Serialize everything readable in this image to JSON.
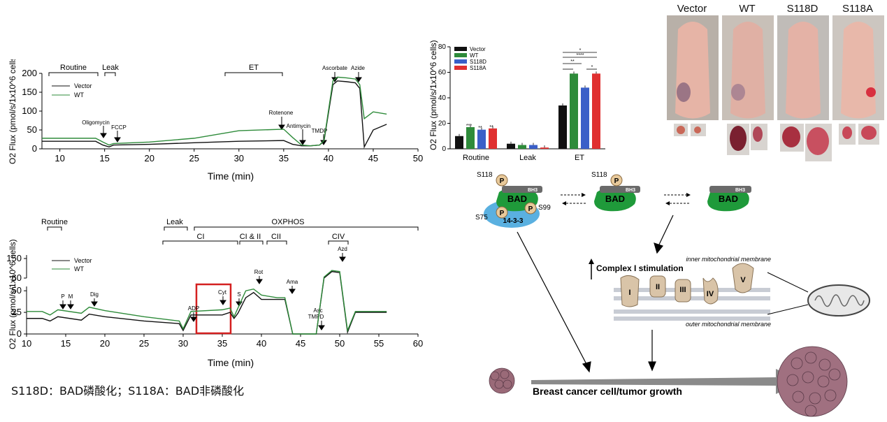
{
  "colors": {
    "vector": "#111111",
    "wt": "#2e8b3a",
    "s118d": "#3a5fc8",
    "s118a": "#e03030",
    "highlight": "#d42020",
    "bad": "#1f9a3a",
    "protein1433": "#5ab0e0",
    "phospho": "#e8c99a",
    "complex": "#d9c4a8"
  },
  "panel_a": {
    "ylabel": "O2 Flux (pmol/s/1x10^6 cells)",
    "xlabel": "Time (min)",
    "legend": [
      "Vector",
      "WT"
    ],
    "phases": [
      "Routine",
      "Leak",
      "ET"
    ],
    "injections": [
      "Oligomycin",
      "FCCP",
      "Rotenone",
      "Antimycin",
      "TMDP",
      "Ascorbate",
      "Azide"
    ],
    "chart_data": {
      "type": "line",
      "xlim": [
        8,
        50
      ],
      "ylim": [
        0,
        200
      ],
      "x_ticks": [
        "10",
        "15",
        "20",
        "25",
        "30",
        "35",
        "40",
        "45",
        "50"
      ],
      "y_ticks": [
        "0",
        "50",
        "100",
        "150",
        "200"
      ],
      "series": [
        {
          "name": "Vector",
          "x": [
            8,
            14,
            14.8,
            15.5,
            16,
            20,
            25,
            30,
            35,
            36,
            37,
            38,
            39,
            39.5,
            40.5,
            41,
            42,
            43,
            43.5,
            44,
            45,
            46.5
          ],
          "y": [
            20,
            20,
            10,
            5,
            10,
            12,
            16,
            20,
            22,
            12,
            8,
            8,
            10,
            20,
            170,
            180,
            178,
            175,
            160,
            5,
            50,
            65
          ]
        },
        {
          "name": "WT",
          "x": [
            8,
            14,
            14.8,
            15.5,
            16,
            20,
            25,
            30,
            35,
            36,
            37,
            38,
            39,
            39.5,
            40.5,
            41,
            42,
            43,
            43.5,
            44,
            45,
            46.5
          ],
          "y": [
            28,
            28,
            18,
            10,
            14,
            18,
            28,
            48,
            52,
            30,
            10,
            8,
            10,
            22,
            180,
            190,
            188,
            185,
            170,
            80,
            98,
            92
          ]
        }
      ]
    }
  },
  "panel_b": {
    "ylabel": "O2 Flux (pmol/s/1x10^6 cells)",
    "xlabel": "Time (min)",
    "legend": [
      "Vector",
      "WT"
    ],
    "phases": [
      "Routine",
      "Leak",
      "OXPHOS",
      "CI",
      "CI & II",
      "CII",
      "CIV"
    ],
    "injections": [
      "P",
      "M",
      "Dig",
      "ADP",
      "Cyt",
      "S",
      "Rot",
      "Ama",
      "Asc\nTMPD",
      "Azd"
    ],
    "chart_data": {
      "type": "line",
      "xlim": [
        10,
        60
      ],
      "ylim": [
        0,
        150
      ],
      "x_ticks": [
        "10",
        "15",
        "20",
        "25",
        "30",
        "35",
        "40",
        "45",
        "50",
        "55",
        "60"
      ],
      "y_ticks_low": [
        "0",
        "25",
        "50"
      ],
      "y_ticks_high": [
        "60",
        "150"
      ],
      "series": [
        {
          "name": "Vector",
          "x": [
            10,
            12,
            13,
            14,
            17,
            18,
            20,
            25,
            29.5,
            30,
            31,
            35,
            36,
            36.5,
            37,
            38,
            39,
            40,
            42,
            43,
            44,
            47,
            48,
            49,
            50,
            51,
            52,
            56
          ],
          "y": [
            18,
            18,
            15,
            20,
            16,
            23,
            20,
            15,
            12,
            4,
            22,
            22,
            25,
            18,
            24,
            42,
            48,
            40,
            40,
            40,
            0,
            0,
            60,
            90,
            85,
            2,
            25,
            25
          ]
        },
        {
          "name": "WT",
          "x": [
            10,
            12,
            13,
            14,
            17,
            18,
            20,
            25,
            29.5,
            30,
            31,
            35,
            36,
            36.5,
            37,
            38,
            39,
            40,
            42,
            43,
            44,
            47,
            48,
            49,
            50,
            51,
            52,
            56
          ],
          "y": [
            26,
            26,
            22,
            28,
            24,
            31,
            27,
            20,
            15,
            6,
            26,
            28,
            30,
            20,
            30,
            50,
            52,
            45,
            42,
            42,
            0,
            0,
            65,
            95,
            90,
            4,
            26,
            26
          ]
        }
      ]
    }
  },
  "panel_c": {
    "ylabel": "O2 Flux (pmol/s/1x10^6 cells)",
    "legend": [
      "Vector",
      "WT",
      "S118D",
      "S118A"
    ],
    "chart_data": {
      "type": "bar",
      "categories": [
        "Routine",
        "Leak",
        "ET"
      ],
      "ylim": [
        0,
        80
      ],
      "y_ticks": [
        "0",
        "20",
        "40",
        "60",
        "80"
      ],
      "series": [
        {
          "name": "Vector",
          "values": [
            10,
            4,
            34
          ]
        },
        {
          "name": "WT",
          "values": [
            17,
            3,
            59
          ]
        },
        {
          "name": "S118D",
          "values": [
            15,
            3,
            48
          ]
        },
        {
          "name": "S118A",
          "values": [
            16,
            1,
            59
          ]
        }
      ],
      "significance": {
        "Routine": [
          "***",
          "**",
          "**"
        ],
        "ET": [
          "*",
          "****",
          "**",
          "*"
        ]
      }
    }
  },
  "photos": {
    "labels": [
      "Vector",
      "WT",
      "S118D",
      "S118A"
    ]
  },
  "diagram": {
    "s118": "S118",
    "s118_b": "S118",
    "s75": "S75",
    "s99": "S99",
    "p": "P",
    "bh3": "BH3",
    "bad": "BAD",
    "protein_1433": "14-3-3",
    "complex_stim": "Complex I stimulation",
    "inner_membrane": "inner mitochondrial membrane",
    "outer_membrane": "outer mitochondrial membrane",
    "complexes": [
      "I",
      "II",
      "III",
      "IV",
      "V"
    ],
    "growth": "Breast cancer cell/tumor growth"
  },
  "caption": "S118D：BAD磷酸化；S118A：BAD非磷酸化"
}
